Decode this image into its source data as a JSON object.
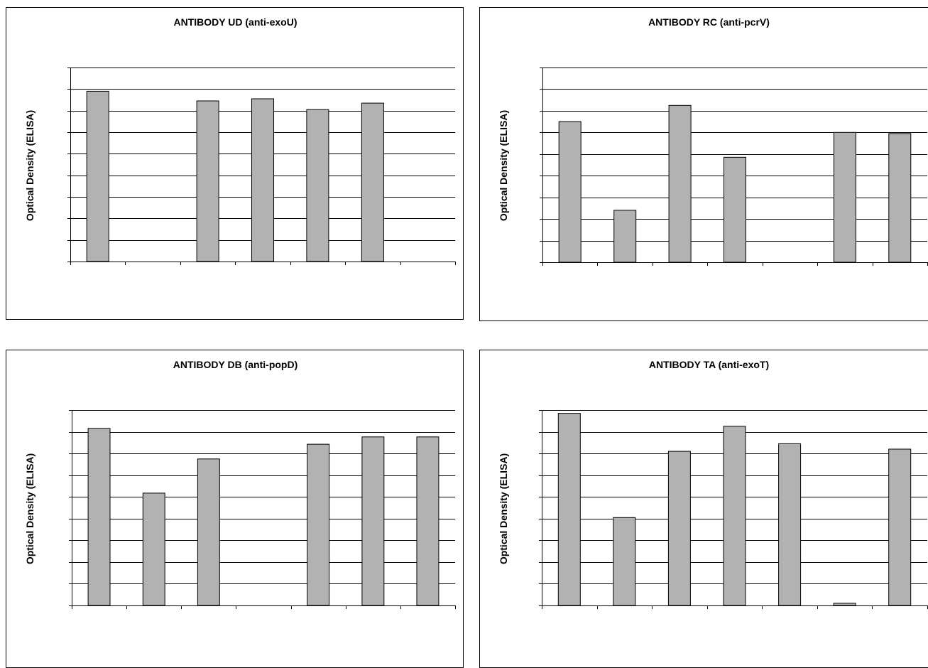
{
  "chart_data": [
    {
      "type": "bar",
      "title": "ANTIBODY UD (anti-exoU)",
      "ylabel": "Optical Density (ELISA)",
      "xlabel": "",
      "categories": [
        "",
        "",
        "",
        "",
        "",
        "",
        ""
      ],
      "values": [
        0.79,
        0.0,
        0.745,
        0.755,
        0.705,
        0.735,
        0.0
      ],
      "ylim": [
        0,
        0.9
      ],
      "grid": true,
      "bar_color": "#b2b2b2"
    },
    {
      "type": "bar",
      "title": "ANTIBODY RC (anti-pcrV)",
      "ylabel": "Optical Density (ELISA)",
      "xlabel": "",
      "categories": [
        "",
        "",
        "",
        "",
        "",
        "",
        ""
      ],
      "values": [
        0.65,
        0.24,
        0.725,
        0.485,
        0.0,
        0.6,
        0.595
      ],
      "ylim": [
        0,
        0.9
      ],
      "grid": true,
      "bar_color": "#b2b2b2"
    },
    {
      "type": "bar",
      "title": "ANTIBODY DB (anti-popD)",
      "ylabel": "Optical Density (ELISA)",
      "xlabel": "",
      "categories": [
        "",
        "",
        "",
        "",
        "",
        "",
        ""
      ],
      "values": [
        0.725,
        0.46,
        0.6,
        0.0,
        0.66,
        0.69,
        0.69
      ],
      "ylim": [
        0,
        0.8
      ],
      "grid": true,
      "bar_color": "#b2b2b2"
    },
    {
      "type": "bar",
      "title": "ANTIBODY TA (anti-exoT)",
      "ylabel": "Optical Density (ELISA)",
      "xlabel": "",
      "categories": [
        "",
        "",
        "",
        "",
        "",
        "",
        ""
      ],
      "values": [
        0.885,
        0.405,
        0.71,
        0.825,
        0.745,
        0.01,
        0.72
      ],
      "ylim": [
        0,
        0.9
      ],
      "grid": true,
      "bar_color": "#b2b2b2"
    }
  ]
}
